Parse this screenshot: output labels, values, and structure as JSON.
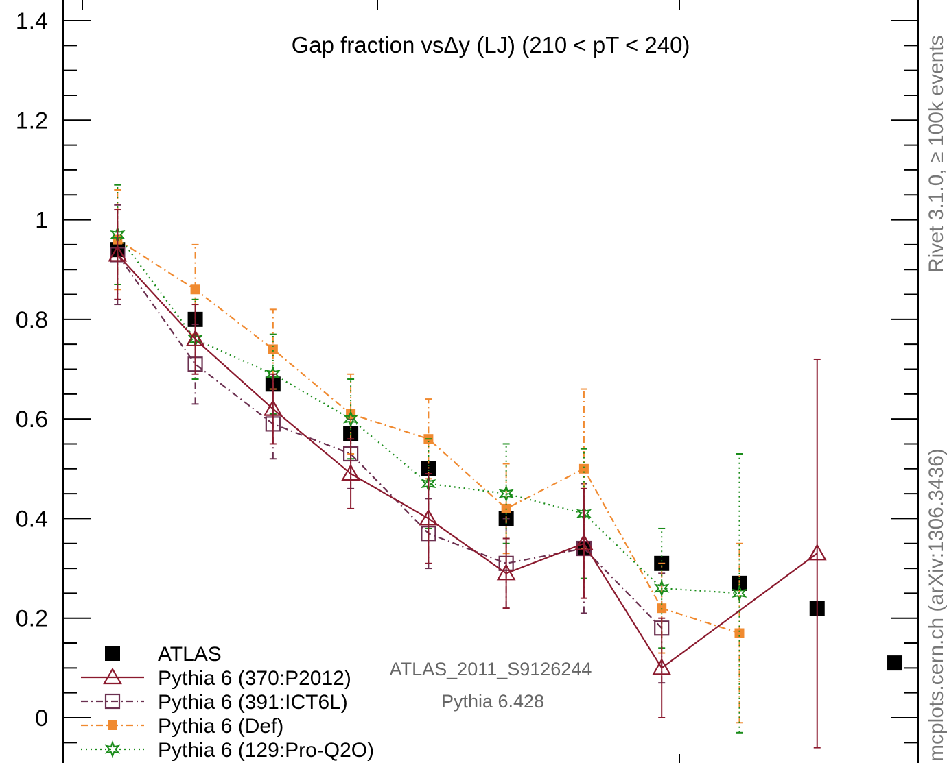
{
  "chart_data": {
    "type": "scatter",
    "title": "Gap fraction vsΔy (LJ) (210 < pT < 240)",
    "xlabel": "",
    "ylabel": "",
    "ylim": [
      -0.1,
      1.45
    ],
    "xlim": [
      0.8,
      11.8
    ],
    "y_ticks": [
      "0",
      "0.2",
      "0.4",
      "0.6",
      "0.8",
      "1",
      "1.2",
      "1.4"
    ],
    "legend_position": "bottom-left",
    "series": [
      {
        "name": "ATLAS",
        "color": "#000000",
        "marker": "filled-square",
        "line": "none",
        "x": [
          1.5,
          2.5,
          3.5,
          4.5,
          5.5,
          6.5,
          7.5,
          8.5,
          9.5,
          10.5,
          11.5
        ],
        "y": [
          0.94,
          0.8,
          0.67,
          0.57,
          0.5,
          0.4,
          0.34,
          0.31,
          0.27,
          0.22,
          0.11
        ],
        "yerr": [
          0,
          0,
          0,
          0,
          0,
          0,
          0,
          0,
          0,
          0,
          0
        ]
      },
      {
        "name": "Pythia 6 (370:P2012)",
        "color": "#8b1a2e",
        "marker": "open-triangle",
        "line": "solid",
        "x": [
          1.5,
          2.5,
          3.5,
          4.5,
          5.5,
          6.5,
          7.5,
          8.5,
          10.5
        ],
        "y": [
          0.93,
          0.76,
          0.62,
          0.49,
          0.4,
          0.29,
          0.35,
          0.1,
          0.33
        ],
        "yerr": [
          0.09,
          0.07,
          0.07,
          0.07,
          0.09,
          0.07,
          0.11,
          0.1,
          0.39
        ]
      },
      {
        "name": "Pythia 6 (391:ICT6L)",
        "color": "#6b3050",
        "marker": "open-square",
        "line": "dashdot",
        "x": [
          1.5,
          2.5,
          3.5,
          4.5,
          5.5,
          6.5,
          7.5,
          8.5
        ],
        "y": [
          0.93,
          0.71,
          0.59,
          0.53,
          0.37,
          0.31,
          0.34,
          0.18
        ],
        "yerr": [
          0.1,
          0.08,
          0.07,
          0.07,
          0.07,
          0.09,
          0.13,
          0.11
        ]
      },
      {
        "name": "Pythia 6 (Def)",
        "color": "#f08a30",
        "marker": "filled-square",
        "line": "dashdot",
        "x": [
          1.5,
          2.5,
          3.5,
          4.5,
          5.5,
          6.5,
          7.5,
          8.5,
          9.5
        ],
        "y": [
          0.96,
          0.86,
          0.74,
          0.61,
          0.56,
          0.42,
          0.5,
          0.22,
          0.17
        ],
        "yerr": [
          0.1,
          0.09,
          0.08,
          0.08,
          0.08,
          0.09,
          0.16,
          0.09,
          0.18
        ]
      },
      {
        "name": "Pythia 6 (129:Pro-Q2O)",
        "color": "#1a8c1a",
        "marker": "open-star",
        "line": "dotted",
        "x": [
          1.5,
          2.5,
          3.5,
          4.5,
          5.5,
          6.5,
          7.5,
          8.5,
          9.5
        ],
        "y": [
          0.97,
          0.76,
          0.69,
          0.6,
          0.47,
          0.45,
          0.41,
          0.26,
          0.25
        ],
        "yerr": [
          0.1,
          0.08,
          0.08,
          0.08,
          0.09,
          0.1,
          0.13,
          0.12,
          0.28
        ]
      }
    ]
  },
  "watermark": {
    "analysis": "ATLAS_2011_S9126244",
    "generator": "Pythia 6.428"
  },
  "side_labels": {
    "rivet": "Rivet 3.1.0, ≥ 100k events",
    "mcplots": "mcplots.cern.ch (arXiv:1306.3436)"
  }
}
